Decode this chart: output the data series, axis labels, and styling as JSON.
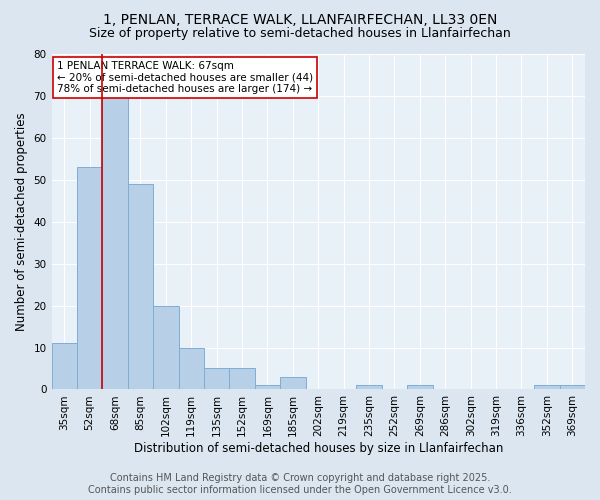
{
  "title": "1, PENLAN, TERRACE WALK, LLANFAIRFECHAN, LL33 0EN",
  "subtitle": "Size of property relative to semi-detached houses in Llanfairfechan",
  "xlabel": "Distribution of semi-detached houses by size in Llanfairfechan",
  "ylabel": "Number of semi-detached properties",
  "categories": [
    "35sqm",
    "52sqm",
    "68sqm",
    "85sqm",
    "102sqm",
    "119sqm",
    "135sqm",
    "152sqm",
    "169sqm",
    "185sqm",
    "202sqm",
    "219sqm",
    "235sqm",
    "252sqm",
    "269sqm",
    "286sqm",
    "302sqm",
    "319sqm",
    "336sqm",
    "352sqm",
    "369sqm"
  ],
  "values": [
    11,
    53,
    75,
    49,
    20,
    10,
    5,
    5,
    1,
    3,
    0,
    0,
    1,
    0,
    1,
    0,
    0,
    0,
    0,
    1,
    1
  ],
  "bar_color": "#b8cfe8",
  "bar_edge_color": "#7fadd4",
  "marker_bin_index": 2,
  "marker_color": "#cc0000",
  "annotation_text": "1 PENLAN TERRACE WALK: 67sqm\n← 20% of semi-detached houses are smaller (44)\n78% of semi-detached houses are larger (174) →",
  "annotation_box_color": "#ffffff",
  "annotation_box_edge_color": "#cc0000",
  "footer1": "Contains HM Land Registry data © Crown copyright and database right 2025.",
  "footer2": "Contains public sector information licensed under the Open Government Licence v3.0.",
  "background_color": "#dce6f0",
  "plot_background_color": "#e8f0f8",
  "grid_color": "#ffffff",
  "ylim": [
    0,
    80
  ],
  "title_fontsize": 10,
  "subtitle_fontsize": 9,
  "axis_label_fontsize": 8.5,
  "tick_fontsize": 7.5,
  "annotation_fontsize": 7.5,
  "footer_fontsize": 7
}
